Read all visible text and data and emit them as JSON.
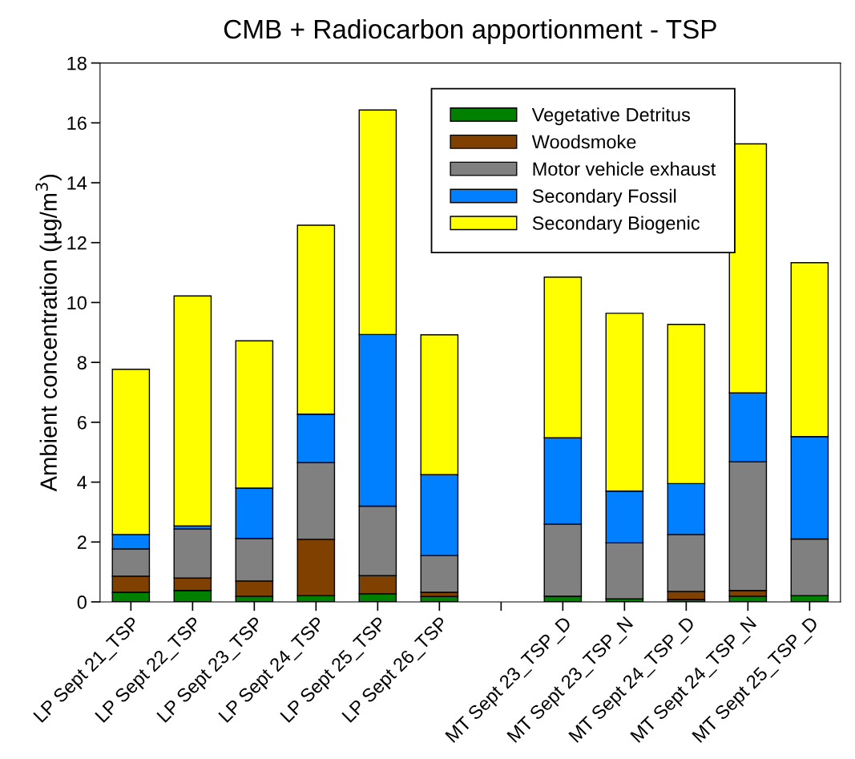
{
  "chart_data": {
    "type": "bar",
    "title": "CMB + Radiocarbon apportionment - TSP",
    "ylabel": "Ambient concentration (µg/m$^{3}$)",
    "categories": [
      "LP Sept 21_TSP",
      "LP Sept 22_TSP",
      "LP Sept 23_TSP",
      "LP Sept 24_TSP",
      "LP Sept 25_TSP",
      "LP Sept 26_TSP",
      null,
      "MT Sept 23_TSP_D",
      "MT Sept 23_TSP_N",
      "MT Sept 24_TSP_D",
      "MT Sept 24_TSP_N",
      "MT Sept 25_TSP_D"
    ],
    "stacked": true,
    "series": [
      {
        "name": "Vegetative Detritus",
        "color": "#008000",
        "values": [
          0.32,
          0.38,
          0.19,
          0.21,
          0.27,
          0.18,
          null,
          0.19,
          0.1,
          0.08,
          0.19,
          0.21
        ]
      },
      {
        "name": "Woodsmoke",
        "color": "#804000",
        "values": [
          0.54,
          0.42,
          0.51,
          1.88,
          0.61,
          0.14,
          null,
          0,
          null,
          0.27,
          0.19,
          0
        ]
      },
      {
        "name": "Motor vehicle exhaust",
        "color": "#808080",
        "values": [
          0.91,
          1.64,
          1.42,
          2.56,
          2.32,
          1.23,
          null,
          2.41,
          1.87,
          1.9,
          4.3,
          1.89
        ]
      },
      {
        "name": "Secondary Fossil",
        "color": "#0080ff",
        "values": [
          0.48,
          0.1,
          1.68,
          1.62,
          5.73,
          2.7,
          null,
          2.88,
          1.73,
          1.7,
          2.3,
          3.42
        ]
      },
      {
        "name": "Secondary Biogenic",
        "color": "#ffff00",
        "values": [
          5.52,
          7.68,
          4.92,
          6.31,
          7.5,
          4.67,
          null,
          5.37,
          5.94,
          5.32,
          8.32,
          5.81
        ]
      }
    ],
    "ylim": [
      0,
      18
    ],
    "yticks": [
      0,
      2,
      4,
      6,
      8,
      10,
      12,
      14,
      16,
      18
    ],
    "grid": false,
    "legend": "top right"
  }
}
